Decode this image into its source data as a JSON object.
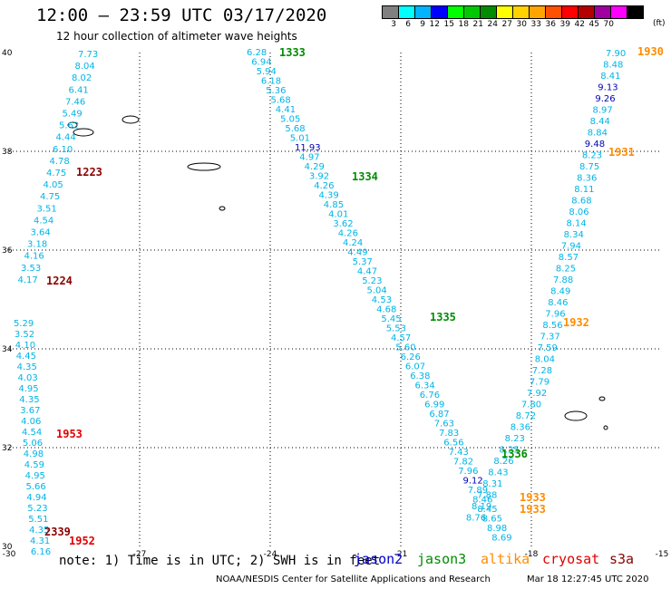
{
  "header": {
    "title": "12:00 – 23:59 UTC 03/17/2020",
    "subtitle": "12 hour collection of altimeter wave heights"
  },
  "color_scale": {
    "unit": "(ft)",
    "steps": [
      {
        "label": "3",
        "color": "#808080"
      },
      {
        "label": "6",
        "color": "#00ffff"
      },
      {
        "label": "9",
        "color": "#00b4ff"
      },
      {
        "label": "12",
        "color": "#0000ff"
      },
      {
        "label": "15",
        "color": "#00ff00"
      },
      {
        "label": "18",
        "color": "#00c800"
      },
      {
        "label": "21",
        "color": "#008c00"
      },
      {
        "label": "24",
        "color": "#ffff00"
      },
      {
        "label": "27",
        "color": "#ffd200"
      },
      {
        "label": "30",
        "color": "#ffa500"
      },
      {
        "label": "33",
        "color": "#ff5000"
      },
      {
        "label": "36",
        "color": "#ff0000"
      },
      {
        "label": "39",
        "color": "#b40000"
      },
      {
        "label": "42",
        "color": "#a000a0"
      },
      {
        "label": "45",
        "color": "#ff00ff"
      },
      {
        "label": "70",
        "color": "#000000"
      }
    ]
  },
  "map": {
    "lon_range": [
      -30,
      -15
    ],
    "lat_range": [
      30,
      40
    ],
    "lon_ticks": [
      "-30",
      "-27",
      "-24",
      "-21",
      "-18",
      "-15"
    ],
    "lat_ticks": [
      "30",
      "32",
      "34",
      "36",
      "38",
      "40"
    ]
  },
  "satellite_colors": {
    "jason2": "#0000c8",
    "jason3": "#008c00",
    "altika": "#ff8c00",
    "cryosat": "#e00000",
    "s3a": "#8b0000",
    "measure": "#00b4e6",
    "measure_high": "#0000b4"
  },
  "tracks": [
    {
      "id": "left-track",
      "label_sat": "s3a",
      "labels": [
        {
          "text": "1223",
          "sat": "s3a"
        },
        {
          "text": "1224",
          "sat": "s3a"
        }
      ],
      "values": [
        "7.73",
        "8.04",
        "8.02",
        "6.41",
        "7.46",
        "5.49",
        "5.62",
        "4.44",
        "6.10",
        "4.78",
        "4.75",
        "4.05",
        "4.75",
        "3.51",
        "4.54",
        "3.64",
        "3.18",
        "4.16",
        "3.53",
        "4.17"
      ]
    },
    {
      "id": "left-track-south",
      "labels": [
        {
          "text": "1953",
          "sat": "cryosat"
        },
        {
          "text": "2339",
          "sat": "s3a"
        },
        {
          "text": "1952",
          "sat": "cryosat"
        }
      ],
      "values": [
        "5.29",
        "3.52",
        "4.10",
        "4.45",
        "4.35",
        "4.03",
        "4.95",
        "4.35",
        "3.67",
        "4.06",
        "4.54",
        "5.06",
        "4.98",
        "4.59",
        "4.95",
        "5.66",
        "4.94",
        "5.23",
        "5.51",
        "4.35",
        "4.31",
        "6.16"
      ]
    },
    {
      "id": "middle-track",
      "labels": [
        {
          "text": "1333",
          "sat": "jason3"
        },
        {
          "text": "1334",
          "sat": "jason3"
        },
        {
          "text": "1335",
          "sat": "jason3"
        }
      ],
      "values": [
        "6.28",
        "6.94",
        "5.94",
        "6.18",
        "5.36",
        "5.68",
        "4.41",
        "5.05",
        "5.68",
        "5.01",
        "11.93",
        "4.97",
        "4.29",
        "3.92",
        "4.26",
        "4.39",
        "4.85",
        "4.01",
        "3.62",
        "4.26",
        "4.24",
        "4.49",
        "5.37",
        "4.47",
        "5.23",
        "5.04",
        "4.53",
        "4.68",
        "5.45",
        "5.53",
        "4.57",
        "5.60",
        "6.26",
        "6.07",
        "6.38",
        "6.34",
        "6.76",
        "6.99",
        "6.87",
        "7.63",
        "7.83",
        "6.56",
        "7.43",
        "7.82",
        "7.96",
        "9.12",
        "7.89",
        "8.46",
        "8.45",
        "8.65",
        "8.98",
        "8.69"
      ]
    },
    {
      "id": "right-track",
      "labels": [
        {
          "text": "1930",
          "sat": "altika"
        },
        {
          "text": "1931",
          "sat": "altika"
        },
        {
          "text": "1932",
          "sat": "altika"
        },
        {
          "text": "1336",
          "sat": "jason3"
        },
        {
          "text": "1933",
          "sat": "altika"
        },
        {
          "text": "1933",
          "sat": "altika"
        }
      ],
      "values": [
        "7.90",
        "8.48",
        "8.41",
        "9.13",
        "9.26",
        "8.97",
        "8.44",
        "8.84",
        "9.48",
        "8.23",
        "8.75",
        "8.36",
        "8.11",
        "8.68",
        "8.06",
        "8.14",
        "8.34",
        "7.94",
        "8.57",
        "8.25",
        "7.88",
        "8.49",
        "8.46",
        "7.96",
        "8.56",
        "7.37",
        "7.59",
        "8.04",
        "7.28",
        "7.79",
        "7.92",
        "7.80",
        "8.72",
        "8.36",
        "8.23",
        "8.25",
        "8.26",
        "8.43",
        "8.31",
        "7.88",
        "8.19",
        "8.76"
      ]
    }
  ],
  "footer": {
    "note": "note: 1) Time is in UTC; 2) SWH is in feet",
    "satellites": [
      {
        "name": "jason2",
        "color": "#0000c8"
      },
      {
        "name": "jason3",
        "color": "#008c00"
      },
      {
        "name": "altika",
        "color": "#ff8c00"
      },
      {
        "name": "cryosat",
        "color": "#e00000"
      },
      {
        "name": "s3a",
        "color": "#8b0000"
      }
    ],
    "credits": "NOAA/NESDIS Center for Satellite Applications and Research",
    "generated": "Mar 18 12:27:45 UTC 2020"
  }
}
